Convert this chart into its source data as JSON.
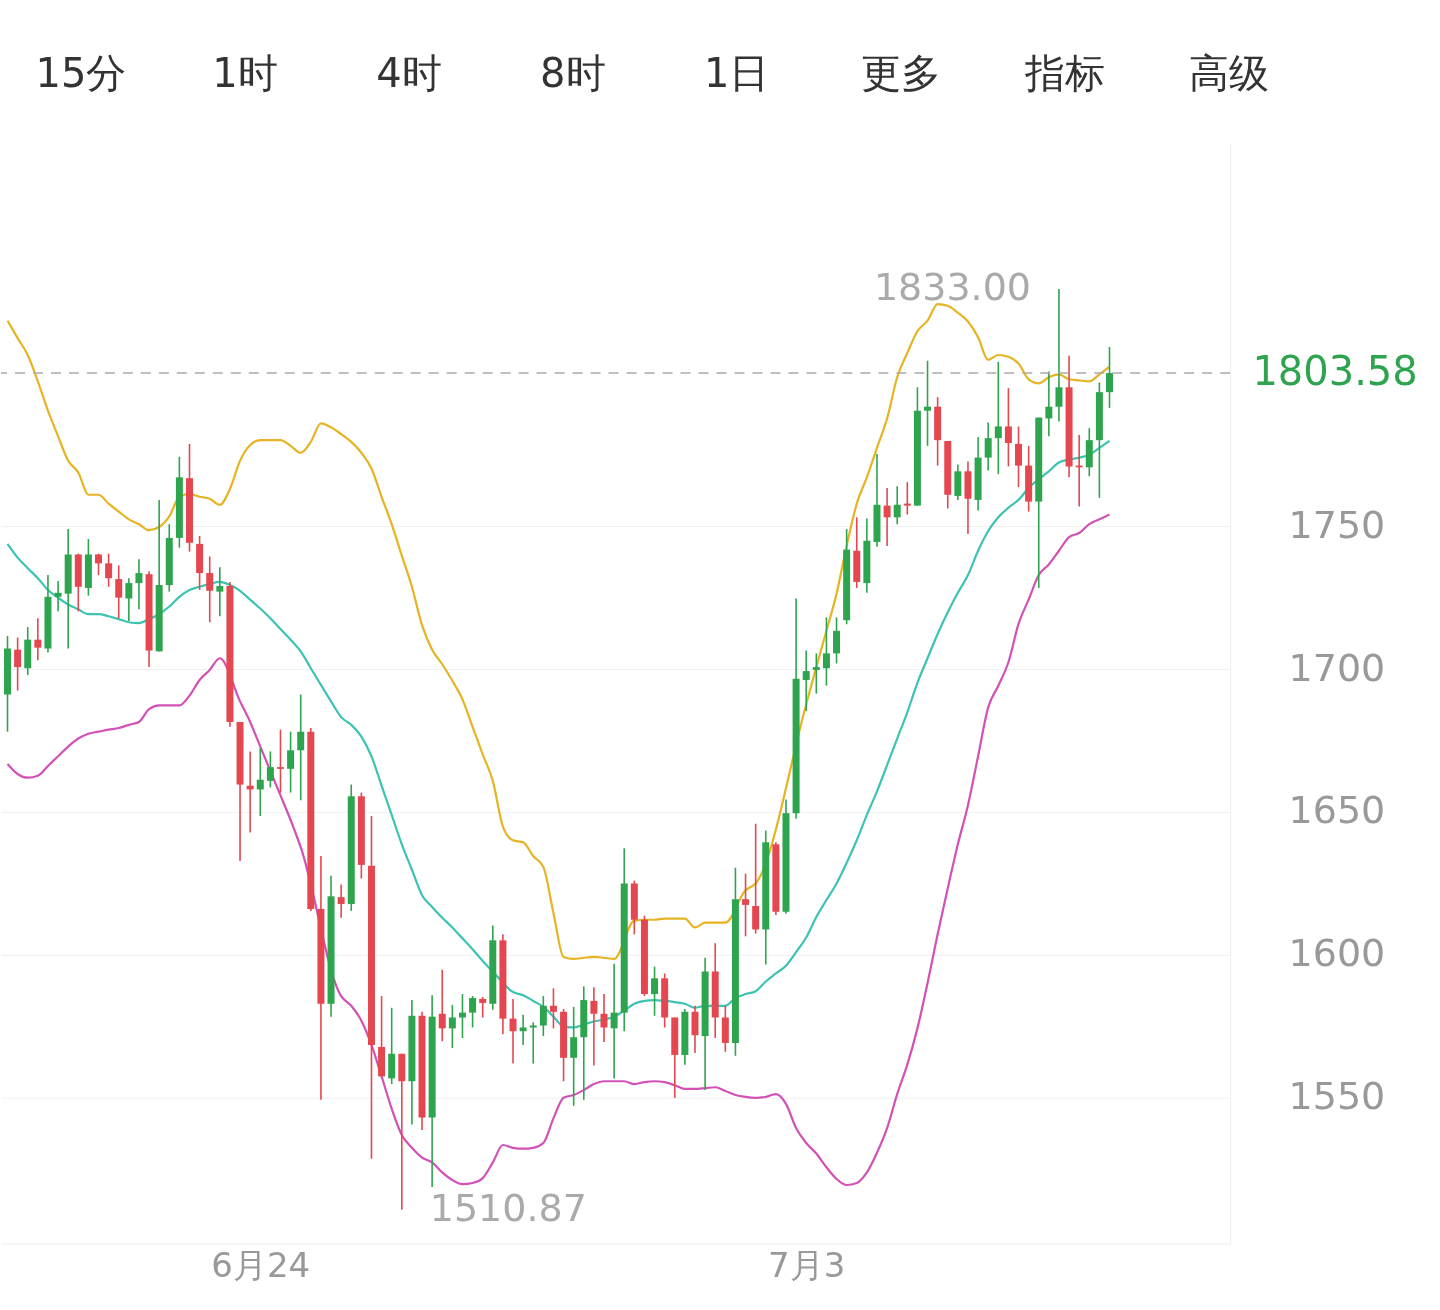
{
  "chart_data": {
    "type": "candlestick",
    "categories": [
      null,
      null,
      null,
      null,
      null,
      null,
      null,
      null,
      null,
      null,
      null,
      null,
      null,
      null,
      null,
      null,
      null,
      null,
      null,
      null,
      null,
      null,
      null,
      null,
      null,
      "6月24",
      null,
      null,
      null,
      null,
      null,
      null,
      null,
      null,
      null,
      null,
      null,
      null,
      null,
      null,
      null,
      null,
      null,
      null,
      null,
      null,
      null,
      null,
      null,
      null,
      null,
      null,
      null,
      null,
      null,
      null,
      null,
      null,
      null,
      null,
      null,
      null,
      null,
      null,
      null,
      null,
      null,
      null,
      null,
      null,
      null,
      null,
      null,
      null,
      null,
      null,
      null,
      null,
      null,
      "7月3",
      null,
      null,
      null,
      null,
      null,
      null,
      null,
      null,
      null,
      null,
      null,
      null,
      null,
      null,
      null,
      null,
      null,
      null,
      null,
      null,
      null,
      null,
      null,
      null,
      null,
      null,
      null,
      null,
      null,
      null
    ],
    "ohlc": [
      [
        1691.1,
        1711.6,
        1678.1,
        1707.2
      ],
      [
        1706.8,
        1711.0,
        1692.5,
        1700.7
      ],
      [
        1700.3,
        1714.7,
        1697.9,
        1710.3
      ],
      [
        1710.3,
        1717.8,
        1703.1,
        1707.5
      ],
      [
        1707.2,
        1732.9,
        1705.8,
        1725.3
      ],
      [
        1725.3,
        1730.8,
        1720.2,
        1726.7
      ],
      [
        1726.4,
        1749.0,
        1707.2,
        1740.1
      ],
      [
        1740.1,
        1740.4,
        1720.2,
        1728.8
      ],
      [
        1728.4,
        1745.5,
        1725.7,
        1740.1
      ],
      [
        1740.1,
        1740.4,
        1732.9,
        1737.0
      ],
      [
        1737.0,
        1740.4,
        1728.8,
        1731.8
      ],
      [
        1731.5,
        1736.3,
        1717.8,
        1725.0
      ],
      [
        1724.7,
        1731.8,
        1716.8,
        1730.1
      ],
      [
        1730.1,
        1738.4,
        1720.9,
        1733.6
      ],
      [
        1733.2,
        1734.2,
        1700.7,
        1706.5
      ],
      [
        1706.2,
        1759.2,
        1706.2,
        1729.4
      ],
      [
        1729.4,
        1750.7,
        1727.1,
        1745.9
      ],
      [
        1745.9,
        1774.3,
        1742.5,
        1767.1
      ],
      [
        1766.8,
        1778.8,
        1741.1,
        1744.2
      ],
      [
        1743.8,
        1746.6,
        1727.7,
        1733.6
      ],
      [
        1733.6,
        1739.4,
        1716.4,
        1727.4
      ],
      [
        1727.1,
        1735.6,
        1718.5,
        1729.1
      ],
      [
        1729.1,
        1730.5,
        1679.8,
        1681.5
      ],
      [
        1681.5,
        1681.5,
        1632.9,
        1659.6
      ],
      [
        1659.2,
        1671.2,
        1642.8,
        1657.9
      ],
      [
        1657.9,
        1672.3,
        1648.6,
        1661.3
      ],
      [
        1660.9,
        1671.2,
        1658.6,
        1665.7
      ],
      [
        1665.7,
        1678.8,
        1656.8,
        1665.1
      ],
      [
        1665.1,
        1678.1,
        1656.8,
        1671.6
      ],
      [
        1671.6,
        1691.1,
        1654.1,
        1678.1
      ],
      [
        1678.1,
        1679.4,
        1615.4,
        1616.1
      ],
      [
        1616.1,
        1634.6,
        1549.3,
        1582.9
      ],
      [
        1582.9,
        1627.7,
        1578.4,
        1620.5
      ],
      [
        1620.2,
        1624.6,
        1613.0,
        1617.8
      ],
      [
        1617.8,
        1659.6,
        1615.4,
        1655.5
      ],
      [
        1655.5,
        1656.8,
        1626.7,
        1631.5
      ],
      [
        1631.2,
        1648.6,
        1528.7,
        1568.5
      ],
      [
        1567.8,
        1585.6,
        1557.5,
        1557.5
      ],
      [
        1556.8,
        1581.5,
        1554.8,
        1565.4
      ],
      [
        1565.4,
        1565.4,
        1510.87,
        1555.8
      ],
      [
        1555.8,
        1584.2,
        1540.7,
        1578.7
      ],
      [
        1578.7,
        1580.1,
        1538.7,
        1543.1
      ],
      [
        1543.1,
        1585.9,
        1518.8,
        1578.4
      ],
      [
        1579.4,
        1594.8,
        1569.8,
        1574.3
      ],
      [
        1574.3,
        1582.5,
        1567.4,
        1578.1
      ],
      [
        1578.1,
        1586.3,
        1570.9,
        1579.8
      ],
      [
        1579.8,
        1585.6,
        1574.6,
        1584.9
      ],
      [
        1584.6,
        1585.3,
        1578.1,
        1583.2
      ],
      [
        1582.9,
        1610.3,
        1580.8,
        1605.1
      ],
      [
        1605.1,
        1607.2,
        1572.2,
        1577.7
      ],
      [
        1577.7,
        1584.6,
        1562.0,
        1573.3
      ],
      [
        1573.3,
        1579.1,
        1568.5,
        1574.6
      ],
      [
        1574.6,
        1576.4,
        1562.0,
        1575.3
      ],
      [
        1575.3,
        1585.6,
        1571.6,
        1582.2
      ],
      [
        1582.2,
        1588.3,
        1574.3,
        1580.1
      ],
      [
        1580.1,
        1581.1,
        1555.8,
        1564.0
      ],
      [
        1564.0,
        1581.8,
        1547.2,
        1571.2
      ],
      [
        1571.2,
        1589.0,
        1549.3,
        1584.2
      ],
      [
        1583.9,
        1588.7,
        1561.3,
        1579.4
      ],
      [
        1579.4,
        1586.3,
        1569.5,
        1574.6
      ],
      [
        1574.3,
        1596.9,
        1556.8,
        1579.8
      ],
      [
        1579.8,
        1637.3,
        1573.3,
        1625.0
      ],
      [
        1625.0,
        1626.0,
        1607.2,
        1612.3
      ],
      [
        1612.3,
        1613.7,
        1585.6,
        1586.3
      ],
      [
        1586.3,
        1595.9,
        1578.7,
        1591.8
      ],
      [
        1591.8,
        1593.5,
        1574.6,
        1578.1
      ],
      [
        1578.1,
        1578.1,
        1550.0,
        1565.0
      ],
      [
        1565.0,
        1581.1,
        1561.6,
        1580.1
      ],
      [
        1580.1,
        1582.2,
        1565.7,
        1571.9
      ],
      [
        1571.6,
        1599.0,
        1552.7,
        1594.2
      ],
      [
        1594.2,
        1604.1,
        1570.9,
        1578.1
      ],
      [
        1578.1,
        1582.2,
        1566.1,
        1569.2
      ],
      [
        1569.2,
        1630.5,
        1564.7,
        1619.5
      ],
      [
        1619.5,
        1628.4,
        1606.5,
        1617.5
      ],
      [
        1617.1,
        1645.9,
        1607.5,
        1608.9
      ],
      [
        1608.9,
        1643.5,
        1596.6,
        1639.4
      ],
      [
        1638.7,
        1639.4,
        1614.0,
        1615.1
      ],
      [
        1615.1,
        1654.4,
        1614.4,
        1649.6
      ],
      [
        1649.6,
        1724.7,
        1647.6,
        1696.6
      ],
      [
        1696.2,
        1706.5,
        1685.3,
        1699.3
      ],
      [
        1699.7,
        1705.5,
        1691.4,
        1700.7
      ],
      [
        1700.3,
        1718.1,
        1694.2,
        1705.5
      ],
      [
        1705.5,
        1718.1,
        1702.0,
        1713.4
      ],
      [
        1717.1,
        1749.0,
        1715.7,
        1741.8
      ],
      [
        1741.4,
        1753.1,
        1728.4,
        1730.5
      ],
      [
        1730.1,
        1752.7,
        1726.7,
        1744.9
      ],
      [
        1744.5,
        1775.3,
        1742.8,
        1757.5
      ],
      [
        1757.2,
        1763.4,
        1743.1,
        1753.1
      ],
      [
        1753.1,
        1764.0,
        1750.7,
        1757.5
      ],
      [
        1757.9,
        1765.4,
        1754.1,
        1757.2
      ],
      [
        1757.2,
        1798.6,
        1757.2,
        1790.4
      ],
      [
        1790.4,
        1807.9,
        1778.1,
        1791.8
      ],
      [
        1791.8,
        1795.2,
        1771.2,
        1780.1
      ],
      [
        1779.8,
        1779.8,
        1756.2,
        1761.0
      ],
      [
        1760.6,
        1771.6,
        1759.2,
        1769.2
      ],
      [
        1769.2,
        1772.6,
        1747.3,
        1759.6
      ],
      [
        1759.2,
        1781.2,
        1755.5,
        1774.0
      ],
      [
        1774.0,
        1786.3,
        1769.5,
        1780.8
      ],
      [
        1780.8,
        1807.5,
        1768.2,
        1784.9
      ],
      [
        1784.9,
        1798.3,
        1770.9,
        1779.1
      ],
      [
        1778.8,
        1784.9,
        1763.7,
        1771.2
      ],
      [
        1771.2,
        1778.1,
        1755.1,
        1758.6
      ],
      [
        1758.6,
        1788.0,
        1728.4,
        1788.0
      ],
      [
        1787.7,
        1804.1,
        1781.5,
        1791.8
      ],
      [
        1791.8,
        1833.0,
        1786.6,
        1798.6
      ],
      [
        1798.6,
        1809.6,
        1767.1,
        1770.9
      ],
      [
        1771.2,
        1781.9,
        1756.9,
        1770.6
      ],
      [
        1770.6,
        1784.3,
        1767.5,
        1780.1
      ],
      [
        1780.1,
        1800.3,
        1759.9,
        1796.9
      ],
      [
        1796.9,
        1812.7,
        1791.4,
        1803.58
      ]
    ],
    "colors": [
      "#2ea44f",
      "#e4474f",
      "#2ea44f",
      "#e4474f",
      "#2ea44f",
      "#2ea44f",
      "#2ea44f",
      "#e4474f",
      "#2ea44f",
      "#e4474f",
      "#e4474f",
      "#e4474f",
      "#2ea44f",
      "#2ea44f",
      "#e4474f",
      "#2ea44f",
      "#2ea44f",
      "#2ea44f",
      "#e4474f",
      "#e4474f",
      "#e4474f",
      "#2ea44f",
      "#e4474f",
      "#e4474f",
      "#e4474f",
      "#2ea44f",
      "#2ea44f",
      "#e4474f",
      "#2ea44f",
      "#2ea44f",
      "#e4474f",
      "#e4474f",
      "#2ea44f",
      "#e4474f",
      "#2ea44f",
      "#e4474f",
      "#e4474f",
      "#e4474f",
      "#2ea44f",
      "#e4474f",
      "#2ea44f",
      "#e4474f",
      "#2ea44f",
      "#e4474f",
      "#2ea44f",
      "#2ea44f",
      "#2ea44f",
      "#e4474f",
      "#2ea44f",
      "#e4474f",
      "#e4474f",
      "#2ea44f",
      "#2ea44f",
      "#2ea44f",
      "#e4474f",
      "#e4474f",
      "#2ea44f",
      "#2ea44f",
      "#e4474f",
      "#e4474f",
      "#2ea44f",
      "#2ea44f",
      "#e4474f",
      "#e4474f",
      "#2ea44f",
      "#e4474f",
      "#e4474f",
      "#2ea44f",
      "#e4474f",
      "#2ea44f",
      "#e4474f",
      "#e4474f",
      "#2ea44f",
      "#e4474f",
      "#e4474f",
      "#2ea44f",
      "#e4474f",
      "#2ea44f",
      "#2ea44f",
      "#2ea44f",
      "#2ea44f",
      "#2ea44f",
      "#2ea44f",
      "#2ea44f",
      "#e4474f",
      "#2ea44f",
      "#2ea44f",
      "#e4474f",
      "#2ea44f",
      "#e4474f",
      "#2ea44f",
      "#2ea44f",
      "#e4474f",
      "#e4474f",
      "#2ea44f",
      "#e4474f",
      "#2ea44f",
      "#2ea44f",
      "#2ea44f",
      "#e4474f",
      "#e4474f",
      "#e4474f",
      "#2ea44f",
      "#2ea44f",
      "#2ea44f",
      "#e4474f",
      "#e4474f",
      "#2ea44f",
      "#2ea44f",
      "#2ea44f"
    ],
    "series": [
      {
        "type": "line",
        "color": "#e6b422",
        "values": [
          1821.9,
          1815.8,
          1809.9,
          1800.7,
          1790.4,
          1781.5,
          1772.9,
          1768.8,
          1761.0,
          1761.0,
          1757.9,
          1755.1,
          1752.4,
          1750.7,
          1748.6,
          1749.7,
          1753.4,
          1760.3,
          1761.3,
          1760.3,
          1759.6,
          1757.5,
          1763.0,
          1772.9,
          1778.4,
          1780.1,
          1780.1,
          1780.1,
          1778.1,
          1775.7,
          1779.5,
          1786.0,
          1784.6,
          1782.2,
          1779.5,
          1775.7,
          1770.2,
          1760.3,
          1750.7,
          1739.7,
          1728.8,
          1715.4,
          1706.8,
          1701.7,
          1695.9,
          1689.4,
          1679.8,
          1670.2,
          1660.9,
          1644.9,
          1640.1,
          1639.4,
          1634.6,
          1630.8,
          1614.7,
          1599.3,
          1598.6,
          1599.0,
          1599.3,
          1599.0,
          1598.6,
          null,
          1612.0,
          1612.3,
          1612.3,
          1612.7,
          1612.7,
          1612.7,
          1609.6,
          1611.3,
          1611.3,
          1611.3,
          null,
          1622.6,
          1625.0,
          null,
          null,
          null,
          null,
          1687.7,
          1700.7,
          1713.4,
          1726.4,
          1743.1,
          1757.9,
          1767.1,
          1777.4,
          1787.7,
          1802.1,
          1810.6,
          1818.2,
          1821.9,
          1827.7,
          1827.1,
          1824.7,
          1821.6,
          1816.1,
          1808.2,
          1809.9,
          1809.3,
          1806.9,
          1801.4,
          1800.0,
          1802.1,
          1803.1,
          1801.4,
          1801.0,
          1800.7,
          1803.1,
          1805.8
        ]
      },
      {
        "type": "line",
        "color": "#3cc3b2",
        "values": [
          1743.8,
          1739.0,
          1735.3,
          1731.8,
          1727.7,
          1725.0,
          1722.6,
          1720.9,
          1719.2,
          1719.2,
          1718.5,
          1717.5,
          1716.4,
          1716.1,
          1717.5,
          1719.2,
          1721.9,
          1725.3,
          1727.7,
          1728.8,
          1729.8,
          1730.5,
          1729.4,
          1727.4,
          1724.3,
          1721.2,
          1717.8,
          1714.0,
          1710.3,
          1706.2,
          1700.3,
          1694.5,
          1688.7,
          1683.2,
          1680.5,
          1676.4,
          1669.5,
          1659.2,
          1649.0,
          1638.7,
          1629.8,
          1620.9,
          1616.8,
          1613.0,
          1609.6,
          1605.8,
          1602.0,
          1597.9,
          1594.2,
          null,
          1587.0,
          1585.9,
          1583.9,
          1581.8,
          1578.4,
          1575.0,
          1574.6,
          1575.7,
          1576.7,
          1577.4,
          1578.4,
          1580.5,
          1582.9,
          1583.9,
          1584.2,
          1583.9,
          1583.5,
          1582.9,
          1581.5,
          1582.2,
          1582.2,
          1582.2,
          1584.9,
          1586.3,
          1587.3,
          1590.7,
          1593.5,
          1596.2,
          1601.0,
          1606.1,
          1613.3,
          1619.2,
          1625.0,
          1632.2,
          1640.1,
          1649.0,
          1657.2,
          1666.4,
          1675.7,
          1684.9,
          1695.2,
          1703.8,
          1712.3,
          1719.9,
          1726.7,
          1732.9,
          1741.4,
          1748.3,
          1753.1,
          1756.5,
          1759.2,
          1763.4,
          1766.4,
          1769.2,
          1772.3,
          1773.3,
          1774.0,
          1775.0,
          1777.4,
          1779.8
        ]
      },
      {
        "type": "line",
        "color": "#d251b6",
        "values": [
          1666.8,
          1663.3,
          1662.0,
          1662.7,
          1666.1,
          1669.5,
          1672.9,
          1675.7,
          1677.4,
          1678.1,
          1678.8,
          1679.4,
          1680.5,
          1681.5,
          1686.0,
          1687.3,
          1687.3,
          1687.3,
          1690.7,
          1696.2,
          1699.7,
          1703.8,
          null,
          1688.7,
          1681.5,
          1672.9,
          1664.4,
          1655.8,
          1647.2,
          1637.7,
          null,
          null,
          null,
          1585.6,
          1582.2,
          1577.0,
          1568.5,
          1557.5,
          1546.2,
          1537.0,
          1532.5,
          1529.1,
          1527.4,
          1523.9,
          1521.2,
          1519.8,
          1520.2,
          1521.9,
          1527.4,
          1533.5,
          1532.5,
          1532.2,
          1532.5,
          1534.2,
          1542.8,
          1550.0,
          1551.0,
          1552.7,
          1554.8,
          1555.8,
          1555.8,
          1555.8,
          1554.8,
          1555.5,
          1555.8,
          1555.5,
          1554.4,
          1553.1,
          1553.1,
          1553.4,
          1553.7,
          1552.4,
          1551.0,
          1550.3,
          1550.0,
          1550.3,
          1551.3,
          1547.9,
          1539.4,
          1534.2,
          1530.5,
          1525.7,
          1521.6,
          1519.5,
          1520.2,
          1523.9,
          1530.8,
          1539.4,
          1551.3,
          1561.6,
          1574.3,
          1590.1,
          1607.2,
          1623.3,
          1638.7,
          1652.4,
          1669.5,
          1686.6,
          1694.2,
          1702.4,
          1715.8,
          1724.3,
          1732.9,
          1736.6,
          1741.4,
          1746.2,
          1747.6,
          1750.7,
          1752.4,
          1754.1
        ]
      }
    ],
    "ylim": [
      1499,
      1883.6
    ],
    "yticks": [
      1550,
      1600,
      1650,
      1700,
      1750
    ],
    "grid": "y",
    "ref_lines": [
      {
        "axis": "y",
        "value": 1803.58,
        "label": "1803.58",
        "color": "#aaaaaa",
        "line_style": "dashed"
      }
    ],
    "annotations": [
      "15分",
      "1时",
      "4时",
      "8时",
      "1日",
      "更多",
      "指标",
      "高级",
      "1833.00",
      "1510.87"
    ]
  }
}
